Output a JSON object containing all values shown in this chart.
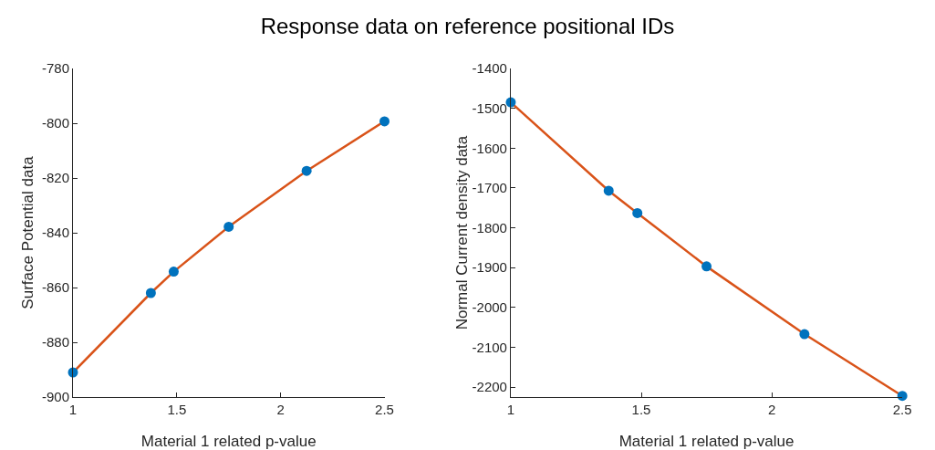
{
  "chart_data": [
    {
      "type": "scatter",
      "title": "Response data on reference positional IDs",
      "xlabel": "Material 1 related p-value",
      "ylabel": "Surface Potential data",
      "x": [
        1,
        1.375,
        1.485,
        1.75,
        2.125,
        2.5
      ],
      "marker": "circle",
      "grid": false,
      "series": [
        {
          "type": "line",
          "color": "#d95319",
          "values": [
            -891,
            -862,
            -854.2,
            -837.8,
            -817.4,
            -799.3
          ],
          "marker": "none"
        },
        {
          "color": "#0072bd",
          "values": [
            -891,
            -862,
            -854.2,
            -837.8,
            -817.4,
            -799.3
          ]
        }
      ],
      "xlim": [
        1,
        2.5
      ],
      "xticks": [
        1,
        1.5,
        2,
        2.5
      ],
      "ylim": [
        -900,
        -780
      ],
      "yticks": [
        -900,
        -880,
        -860,
        -840,
        -820,
        -800,
        -780
      ]
    },
    {
      "type": "scatter",
      "xlabel": "Material 1 related p-value",
      "ylabel": "Normal Current density data",
      "x": [
        1,
        1.375,
        1.485,
        1.75,
        2.125,
        2.5
      ],
      "marker": "circle",
      "grid": false,
      "series": [
        {
          "type": "line",
          "color": "#d95319",
          "values": [
            -1485,
            -1707,
            -1763,
            -1897,
            -2067,
            -2222
          ],
          "marker": "none"
        },
        {
          "color": "#0072bd",
          "values": [
            -1485,
            -1707,
            -1763,
            -1897,
            -2067,
            -2222
          ]
        }
      ],
      "xlim": [
        1,
        2.5
      ],
      "xticks": [
        1,
        1.5,
        2,
        2.5
      ],
      "ylim": [
        -2225,
        -1400
      ],
      "yticks": [
        -2200,
        -2100,
        -2000,
        -1900,
        -1800,
        -1700,
        -1600,
        -1500,
        -1400
      ]
    }
  ]
}
